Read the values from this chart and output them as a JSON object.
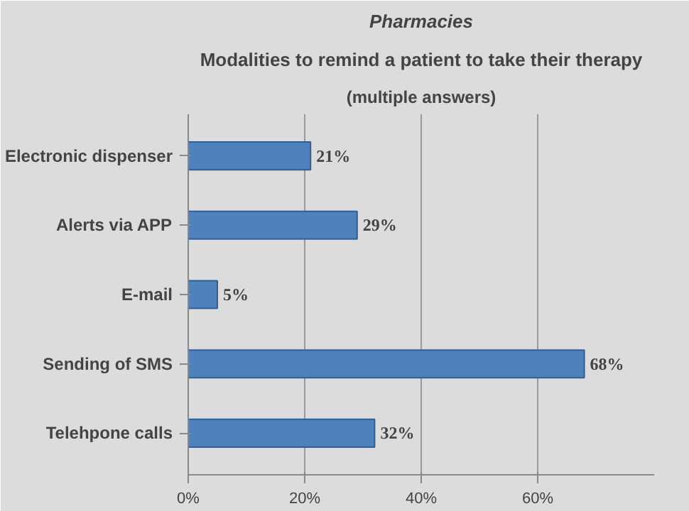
{
  "chart_data": {
    "type": "bar",
    "orientation": "horizontal",
    "title": "Pharmacies",
    "subtitle": "Modalities to remind a patient to take their therapy",
    "annotations": [
      "(multiple answers)"
    ],
    "categories": [
      "Electronic dispenser",
      "Alerts via APP",
      "E-mail",
      "Sending of SMS",
      "Telehpone calls"
    ],
    "values": [
      21,
      29,
      5,
      68,
      32
    ],
    "value_labels": [
      "21%",
      "29%",
      "5%",
      "68%",
      "32%"
    ],
    "color": "#4f81bd",
    "xlim": [
      0,
      80
    ],
    "xticks": [
      {
        "value": 0,
        "label": "0%"
      },
      {
        "value": 20,
        "label": "20%"
      },
      {
        "value": 40,
        "label": "40%"
      },
      {
        "value": 60,
        "label": "60%"
      }
    ],
    "grid": "x"
  }
}
